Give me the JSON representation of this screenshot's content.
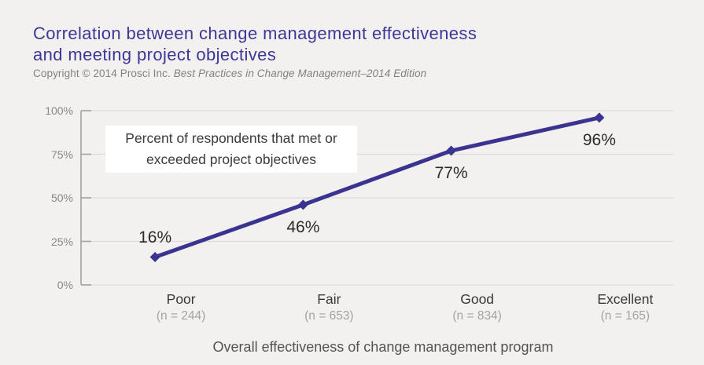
{
  "colors": {
    "background": "#f2f1ef",
    "title": "#3d3795",
    "line": "#3a3490",
    "gridline": "#dedcd9",
    "axis": "#a5a29e",
    "annotation_bg": "#ffffff"
  },
  "header": {
    "title_line1": "Correlation between change management effectiveness",
    "title_line2": "and meeting project objectives",
    "copyright_prefix": "Copyright © 2014 Prosci Inc. ",
    "copyright_source": "Best Practices in Change Management–2014 Edition"
  },
  "annotation": {
    "line1": "Percent of respondents that met or",
    "line2": "exceeded project objectives"
  },
  "chart_data": {
    "type": "line",
    "title": "Correlation between change management effectiveness and meeting project objectives",
    "categories": [
      "Poor",
      "Fair",
      "Good",
      "Excellent"
    ],
    "category_sublabels": [
      "(n = 244)",
      "(n = 653)",
      "(n = 834)",
      "(n = 165)"
    ],
    "values": [
      16,
      46,
      77,
      96
    ],
    "point_labels": [
      "16%",
      "46%",
      "77%",
      "96%"
    ],
    "point_label_positions": [
      "above",
      "below",
      "below",
      "below"
    ],
    "xlabel": "Overall effectiveness of change management program",
    "ylabel": "",
    "ylim": [
      0,
      100
    ],
    "y_ticks": [
      0,
      25,
      50,
      75,
      100
    ],
    "y_tick_labels": [
      "0%",
      "25%",
      "50%",
      "75%",
      "100%"
    ],
    "grid": true,
    "legend": false,
    "marker": "diamond",
    "annotation": "Percent of respondents that met or exceeded project objectives"
  }
}
